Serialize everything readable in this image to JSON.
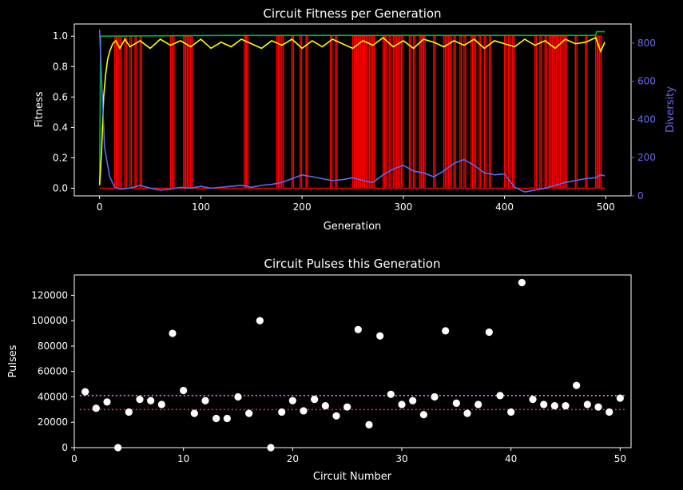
{
  "chart_data": [
    {
      "type": "line",
      "title": "Circuit Fitness per Generation",
      "xlabel": "Generation",
      "ylabel": "Fitness",
      "y2label": "Diversity",
      "xlim": [
        -25,
        525
      ],
      "ylim": [
        -0.05,
        1.08
      ],
      "y2lim": [
        0,
        900
      ],
      "xticks": [
        0,
        100,
        200,
        300,
        400,
        500
      ],
      "yticks": [
        0.0,
        0.2,
        0.4,
        0.6,
        0.8,
        1.0
      ],
      "y2ticks": [
        0,
        200,
        400,
        600,
        800
      ],
      "colors": {
        "max": "#00b03a",
        "mean": "#ffff00",
        "best_mark": "#ff0000",
        "diversity": "#5a6cf0",
        "y2axis": "#6a6cf0"
      },
      "series": [
        {
          "name": "Max fitness",
          "axis": "left",
          "x": [
            0,
            1,
            2,
            120,
            180,
            490,
            491,
            499
          ],
          "y": [
            0.02,
            1.0,
            1.0,
            1.005,
            1.005,
            1.005,
            1.03,
            1.03
          ]
        },
        {
          "name": "Mean fitness",
          "axis": "left",
          "x": [
            0,
            2,
            4,
            6,
            8,
            10,
            13,
            16,
            20,
            25,
            30,
            40,
            50,
            60,
            70,
            80,
            90,
            100,
            110,
            120,
            130,
            140,
            150,
            160,
            170,
            180,
            190,
            200,
            210,
            220,
            230,
            240,
            250,
            260,
            270,
            280,
            290,
            300,
            310,
            320,
            330,
            340,
            350,
            360,
            370,
            380,
            390,
            400,
            410,
            420,
            430,
            440,
            450,
            460,
            470,
            480,
            490,
            495,
            499
          ],
          "y": [
            0.02,
            0.25,
            0.6,
            0.75,
            0.85,
            0.9,
            0.95,
            0.97,
            0.92,
            0.98,
            0.93,
            0.97,
            0.92,
            0.98,
            0.94,
            0.97,
            0.93,
            0.98,
            0.92,
            0.96,
            0.93,
            0.98,
            0.95,
            0.92,
            0.97,
            0.94,
            0.98,
            0.92,
            0.97,
            0.93,
            0.98,
            0.95,
            0.92,
            0.97,
            0.94,
            0.99,
            0.93,
            0.97,
            0.92,
            0.98,
            0.96,
            0.93,
            0.97,
            0.94,
            0.98,
            0.92,
            0.97,
            0.95,
            0.93,
            0.98,
            0.94,
            0.97,
            0.92,
            0.98,
            0.95,
            0.96,
            0.99,
            0.9,
            0.96
          ]
        },
        {
          "name": "Diversity",
          "axis": "right",
          "x": [
            0,
            2,
            5,
            10,
            15,
            20,
            30,
            40,
            50,
            60,
            70,
            80,
            90,
            100,
            110,
            120,
            130,
            140,
            150,
            160,
            170,
            180,
            190,
            200,
            210,
            220,
            230,
            240,
            250,
            260,
            270,
            280,
            290,
            300,
            310,
            320,
            330,
            340,
            350,
            360,
            370,
            380,
            390,
            400,
            410,
            420,
            430,
            440,
            450,
            460,
            470,
            480,
            490,
            495,
            499
          ],
          "y": [
            870,
            600,
            250,
            100,
            45,
            35,
            40,
            55,
            40,
            30,
            35,
            45,
            40,
            50,
            40,
            45,
            50,
            55,
            45,
            55,
            60,
            70,
            90,
            110,
            100,
            90,
            80,
            85,
            95,
            80,
            70,
            110,
            140,
            160,
            130,
            120,
            100,
            130,
            170,
            190,
            160,
            120,
            110,
            115,
            45,
            20,
            30,
            40,
            55,
            70,
            80,
            90,
            95,
            110,
            105
          ]
        }
      ],
      "best_marker_generations": [
        15,
        17,
        20,
        25,
        30,
        35,
        40,
        70,
        72,
        83,
        85,
        87,
        90,
        143,
        145,
        175,
        177,
        180,
        190,
        198,
        204,
        228,
        233,
        250,
        252,
        254,
        256,
        258,
        260,
        262,
        265,
        268,
        270,
        280,
        282,
        286,
        290,
        292,
        295,
        298,
        306,
        310,
        316,
        318,
        320,
        330,
        340,
        343,
        346,
        350,
        356,
        360,
        367,
        370,
        375,
        380,
        385,
        400,
        404,
        408,
        430,
        435,
        440,
        444,
        446,
        448,
        450,
        452,
        455,
        458,
        460,
        470,
        480,
        490,
        492,
        494
      ]
    },
    {
      "type": "scatter",
      "title": "Circuit Pulses this Generation",
      "xlabel": "Circuit Number",
      "ylabel": "Pulses",
      "xlim": [
        0,
        51
      ],
      "ylim": [
        0,
        136000
      ],
      "xticks": [
        0,
        10,
        20,
        30,
        40,
        50
      ],
      "yticks": [
        0,
        20000,
        40000,
        60000,
        80000,
        100000,
        120000
      ],
      "hlines": [
        {
          "y": 41000,
          "color": "#ff88ff",
          "style": "dotted",
          "x": [
            0.5,
            50.5
          ]
        },
        {
          "y": 30000,
          "color": "#ff3030",
          "style": "dotted",
          "x": [
            0.5,
            50.5
          ]
        }
      ],
      "x": [
        1,
        2,
        3,
        4,
        5,
        6,
        7,
        8,
        9,
        10,
        11,
        12,
        13,
        14,
        15,
        16,
        17,
        18,
        19,
        20,
        21,
        22,
        23,
        24,
        25,
        26,
        27,
        28,
        29,
        30,
        31,
        32,
        33,
        34,
        35,
        36,
        37,
        38,
        39,
        40,
        41,
        42,
        43,
        44,
        45,
        46,
        47,
        48,
        49,
        50
      ],
      "y": [
        44000,
        31000,
        36000,
        0,
        28000,
        38000,
        37000,
        34000,
        90000,
        45000,
        27000,
        37000,
        23000,
        23000,
        40000,
        27000,
        100000,
        0,
        28000,
        37000,
        29000,
        38000,
        33000,
        25000,
        32000,
        93000,
        18000,
        88000,
        42000,
        34000,
        37000,
        26000,
        40000,
        92000,
        35000,
        27000,
        34000,
        91000,
        41000,
        28000,
        130000,
        38000,
        34000,
        33000,
        33000,
        49000,
        34000,
        32000,
        28000,
        39000
      ]
    }
  ]
}
